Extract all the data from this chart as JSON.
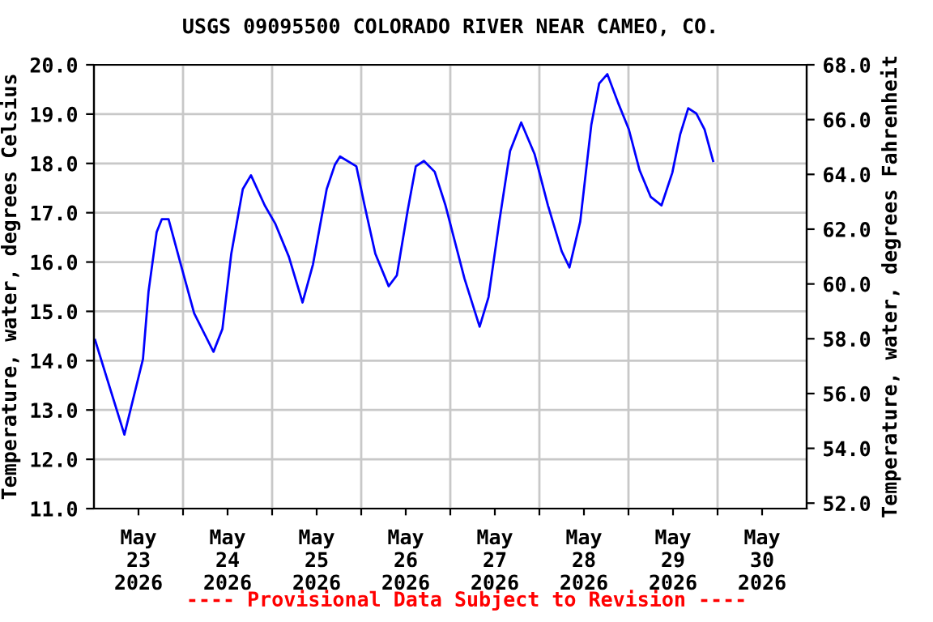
{
  "chart_data": {
    "type": "line",
    "title": "USGS 09095500 COLORADO RIVER NEAR CAMEO, CO.",
    "ylabel": "Temperature, water, degrees Celsius",
    "y2label": "Temperature, water, degrees Fahrenheit",
    "annotations": [
      "---- Provisional Data Subject to Revision ----"
    ],
    "x": [
      "2026-05-23T00:18",
      "2026-05-23T08:12",
      "2026-05-23T13:12",
      "2026-05-23T14:42",
      "2026-05-23T16:54",
      "2026-05-23T18:18",
      "2026-05-23T20:06",
      "2026-05-23T23:24",
      "2026-05-24T03:00",
      "2026-05-24T08:12",
      "2026-05-24T10:36",
      "2026-05-24T13:00",
      "2026-05-24T16:06",
      "2026-05-24T18:18",
      "2026-05-24T22:00",
      "2026-05-25T00:54",
      "2026-05-25T04:30",
      "2026-05-25T08:12",
      "2026-05-25T11:00",
      "2026-05-25T14:42",
      "2026-05-25T16:54",
      "2026-05-25T18:18",
      "2026-05-25T22:42",
      "2026-05-26T00:54",
      "2026-05-26T03:48",
      "2026-05-26T07:24",
      "2026-05-26T09:36",
      "2026-05-26T12:30",
      "2026-05-26T14:42",
      "2026-05-26T16:54",
      "2026-05-26T19:48",
      "2026-05-26T22:42",
      "2026-05-27T03:48",
      "2026-05-27T07:54",
      "2026-05-27T10:18",
      "2026-05-27T13:12",
      "2026-05-27T16:06",
      "2026-05-27T19:06",
      "2026-05-27T22:42",
      "2026-05-28T02:18",
      "2026-05-28T06:00",
      "2026-05-28T08:06",
      "2026-05-28T11:00",
      "2026-05-28T14:00",
      "2026-05-28T16:06",
      "2026-05-28T18:18",
      "2026-05-28T21:12",
      "2026-05-29T00:06",
      "2026-05-29T03:00",
      "2026-05-29T06:00",
      "2026-05-29T08:54",
      "2026-05-29T11:48",
      "2026-05-29T13:54",
      "2026-05-29T16:06",
      "2026-05-29T18:18",
      "2026-05-29T20:30",
      "2026-05-29T22:48"
    ],
    "series": [
      {
        "color": "#0000ff",
        "values": [
          14.42,
          12.5,
          14.03,
          15.4,
          16.61,
          16.87,
          16.87,
          15.95,
          14.96,
          14.18,
          14.64,
          16.17,
          17.48,
          17.76,
          17.15,
          16.77,
          16.11,
          15.18,
          15.95,
          17.48,
          17.97,
          18.14,
          17.94,
          17.15,
          16.17,
          15.51,
          15.73,
          17.04,
          17.94,
          18.05,
          17.83,
          17.15,
          15.67,
          14.69,
          15.29,
          16.82,
          18.25,
          18.83,
          18.19,
          17.15,
          16.22,
          15.89,
          16.82,
          18.79,
          19.62,
          19.81,
          19.23,
          18.69,
          17.86,
          17.32,
          17.15,
          17.81,
          18.58,
          19.12,
          19.01,
          18.69,
          18.05
        ]
      }
    ],
    "xlim": [
      "2026-05-23T00:00",
      "2026-05-31T00:00"
    ],
    "xticks": [
      {
        "value": "2026-05-23T12:00",
        "label": "May\n23\n2026"
      },
      {
        "value": "2026-05-24T00:00",
        "label": null
      },
      {
        "value": "2026-05-24T12:00",
        "label": "May\n24\n2026"
      },
      {
        "value": "2026-05-25T00:00",
        "label": null
      },
      {
        "value": "2026-05-25T12:00",
        "label": "May\n25\n2026"
      },
      {
        "value": "2026-05-26T00:00",
        "label": null
      },
      {
        "value": "2026-05-26T12:00",
        "label": "May\n26\n2026"
      },
      {
        "value": "2026-05-27T00:00",
        "label": null
      },
      {
        "value": "2026-05-27T12:00",
        "label": "May\n27\n2026"
      },
      {
        "value": "2026-05-28T00:00",
        "label": null
      },
      {
        "value": "2026-05-28T12:00",
        "label": "May\n28\n2026"
      },
      {
        "value": "2026-05-29T00:00",
        "label": null
      },
      {
        "value": "2026-05-29T12:00",
        "label": "May\n29\n2026"
      },
      {
        "value": "2026-05-30T00:00",
        "label": null
      },
      {
        "value": "2026-05-30T12:00",
        "label": "May\n30\n2026"
      }
    ],
    "ylim": [
      11,
      20
    ],
    "yticks": [
      {
        "value": 11,
        "label": "11.0"
      },
      {
        "value": 12,
        "label": "12.0"
      },
      {
        "value": 13,
        "label": "13.0"
      },
      {
        "value": 14,
        "label": "14.0"
      },
      {
        "value": 15,
        "label": "15.0"
      },
      {
        "value": 16,
        "label": "16.0"
      },
      {
        "value": 17,
        "label": "17.0"
      },
      {
        "value": 18,
        "label": "18.0"
      },
      {
        "value": 19,
        "label": "19.0"
      },
      {
        "value": 20,
        "label": "20.0"
      }
    ],
    "y2lim": [
      51.8,
      68
    ],
    "y2ticks": [
      {
        "value": 52,
        "label": "52.0"
      },
      {
        "value": 54,
        "label": "54.0"
      },
      {
        "value": 56,
        "label": "56.0"
      },
      {
        "value": 58,
        "label": "58.0"
      },
      {
        "value": 60,
        "label": "60.0"
      },
      {
        "value": 62,
        "label": "62.0"
      },
      {
        "value": 64,
        "label": "64.0"
      },
      {
        "value": 66,
        "label": "66.0"
      },
      {
        "value": 68,
        "label": "68.0"
      }
    ],
    "grid": true,
    "legend": false
  }
}
